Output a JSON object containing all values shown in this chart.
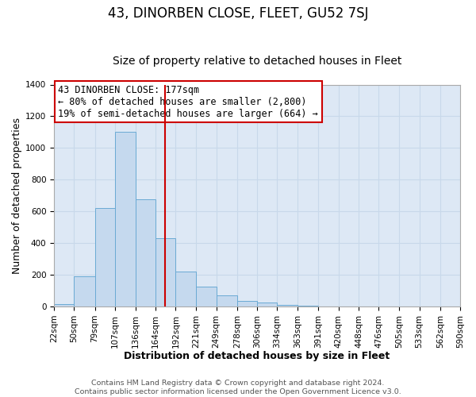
{
  "title": "43, DINORBEN CLOSE, FLEET, GU52 7SJ",
  "subtitle": "Size of property relative to detached houses in Fleet",
  "xlabel": "Distribution of detached houses by size in Fleet",
  "ylabel": "Number of detached properties",
  "footer_lines": [
    "Contains HM Land Registry data © Crown copyright and database right 2024.",
    "Contains public sector information licensed under the Open Government Licence v3.0."
  ],
  "bin_labels": [
    "22sqm",
    "50sqm",
    "79sqm",
    "107sqm",
    "136sqm",
    "164sqm",
    "192sqm",
    "221sqm",
    "249sqm",
    "278sqm",
    "306sqm",
    "334sqm",
    "363sqm",
    "391sqm",
    "420sqm",
    "448sqm",
    "476sqm",
    "505sqm",
    "533sqm",
    "562sqm",
    "590sqm"
  ],
  "bin_edges": [
    22,
    50,
    79,
    107,
    136,
    164,
    192,
    221,
    249,
    278,
    306,
    334,
    363,
    391,
    420,
    448,
    476,
    505,
    533,
    562,
    590
  ],
  "bar_heights": [
    15,
    190,
    620,
    1100,
    675,
    430,
    220,
    125,
    70,
    35,
    25,
    10,
    5,
    0,
    0,
    0,
    0,
    0,
    0,
    0
  ],
  "bar_color": "#c5d9ee",
  "bar_edge_color": "#6aaad4",
  "ylim": [
    0,
    1400
  ],
  "yticks": [
    0,
    200,
    400,
    600,
    800,
    1000,
    1200,
    1400
  ],
  "vline_x": 177,
  "vline_color": "#cc0000",
  "annotation_text": "43 DINORBEN CLOSE: 177sqm\n← 80% of detached houses are smaller (2,800)\n19% of semi-detached houses are larger (664) →",
  "annotation_box_color": "#ffffff",
  "annotation_box_edgecolor": "#cc0000",
  "grid_color": "#c8d8ea",
  "plot_bg_color": "#dde8f5",
  "fig_bg_color": "#ffffff",
  "title_fontsize": 12,
  "subtitle_fontsize": 10,
  "axis_label_fontsize": 9,
  "tick_fontsize": 7.5,
  "annotation_fontsize": 8.5,
  "footer_fontsize": 6.8
}
